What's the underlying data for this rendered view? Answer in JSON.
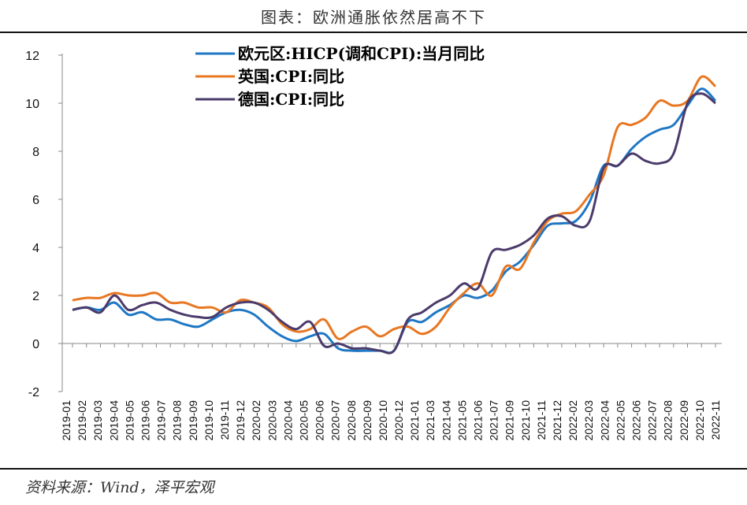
{
  "title": "图表：欧洲通胀依然居高不下",
  "source": "资料来源：Wind，泽平宏观",
  "chart_data": {
    "type": "line",
    "title": "图表：欧洲通胀依然居高不下",
    "xlabel": "",
    "ylabel": "",
    "ylim": [
      -2,
      12
    ],
    "yticks": [
      "12",
      "10",
      "8",
      "6",
      "4",
      "2",
      "0",
      "-2"
    ],
    "categories": [
      "2019-01",
      "2019-02",
      "2019-03",
      "2019-04",
      "2019-05",
      "2019-06",
      "2019-07",
      "2019-08",
      "2019-09",
      "2019-10",
      "2019-11",
      "2019-12",
      "2020-01",
      "2020-02",
      "2020-03",
      "2020-04",
      "2020-05",
      "2020-06",
      "2020-07",
      "2020-08",
      "2020-09",
      "2020-10",
      "2020-11",
      "2020-12",
      "2021-01",
      "2021-02",
      "2021-03",
      "2021-04",
      "2021-05",
      "2021-06",
      "2021-07",
      "2021-08",
      "2021-09",
      "2021-10",
      "2021-11",
      "2021-12",
      "2022-01",
      "2022-02",
      "2022-03",
      "2022-04",
      "2022-05",
      "2022-06",
      "2022-07",
      "2022-08",
      "2022-09",
      "2022-10",
      "2022-11"
    ],
    "xtick_labels": [
      "2019-01",
      "2019-02",
      "2019-03",
      "2019-04",
      "2019-05",
      "2019-06",
      "2019-07",
      "2019-08",
      "2019-09",
      "2019-10",
      "2019-11",
      "2019-12",
      "2020-02",
      "2020-03",
      "2020-04",
      "2020-05",
      "2020-06",
      "2020-07",
      "2020-08",
      "2020-09",
      "2020-10",
      "2020-12",
      "2021-01",
      "2021-03",
      "2021-04",
      "2021-05",
      "2021-06",
      "2021-07",
      "2021-09",
      "2021-10",
      "2021-11",
      "2021-12",
      "2022-02",
      "2022-03",
      "2022-04",
      "2022-05",
      "2022-06",
      "2022-07",
      "2022-08",
      "2022-09",
      "2022-10",
      "2022-11"
    ],
    "series": [
      {
        "name": "欧元区:HICP(调和CPI):当月同比",
        "color": "#1f77c4",
        "values": [
          1.4,
          1.5,
          1.4,
          1.7,
          1.2,
          1.3,
          1.0,
          1.0,
          0.8,
          0.7,
          1.0,
          1.3,
          1.4,
          1.2,
          0.7,
          0.3,
          0.1,
          0.3,
          0.4,
          -0.2,
          -0.3,
          -0.3,
          -0.3,
          -0.3,
          0.9,
          0.9,
          1.3,
          1.6,
          2.0,
          1.9,
          2.2,
          3.0,
          3.4,
          4.1,
          4.9,
          5.0,
          5.1,
          5.9,
          7.4,
          7.4,
          8.1,
          8.6,
          8.9,
          9.1,
          9.9,
          10.6,
          10.1
        ]
      },
      {
        "name": "英国:CPI:同比",
        "color": "#e87722",
        "values": [
          1.8,
          1.9,
          1.9,
          2.1,
          2.0,
          2.0,
          2.1,
          1.7,
          1.7,
          1.5,
          1.5,
          1.3,
          1.8,
          1.7,
          1.5,
          0.8,
          0.5,
          0.6,
          1.0,
          0.2,
          0.5,
          0.7,
          0.3,
          0.6,
          0.7,
          0.4,
          0.7,
          1.5,
          2.1,
          2.5,
          2.0,
          3.2,
          3.1,
          4.2,
          5.1,
          5.4,
          5.5,
          6.2,
          7.0,
          9.0,
          9.1,
          9.4,
          10.1,
          9.9,
          10.1,
          11.1,
          10.7
        ]
      },
      {
        "name": "德国:CPI:同比",
        "color": "#4b3b6b",
        "values": [
          1.4,
          1.5,
          1.3,
          2.0,
          1.4,
          1.6,
          1.7,
          1.4,
          1.2,
          1.1,
          1.1,
          1.5,
          1.7,
          1.7,
          1.4,
          0.9,
          0.6,
          0.9,
          -0.1,
          0.0,
          -0.2,
          -0.2,
          -0.3,
          -0.3,
          1.0,
          1.3,
          1.7,
          2.0,
          2.5,
          2.3,
          3.8,
          3.9,
          4.1,
          4.5,
          5.2,
          5.3,
          4.9,
          5.1,
          7.3,
          7.4,
          7.9,
          7.6,
          7.5,
          7.9,
          10.0,
          10.4,
          10.0
        ]
      }
    ]
  }
}
